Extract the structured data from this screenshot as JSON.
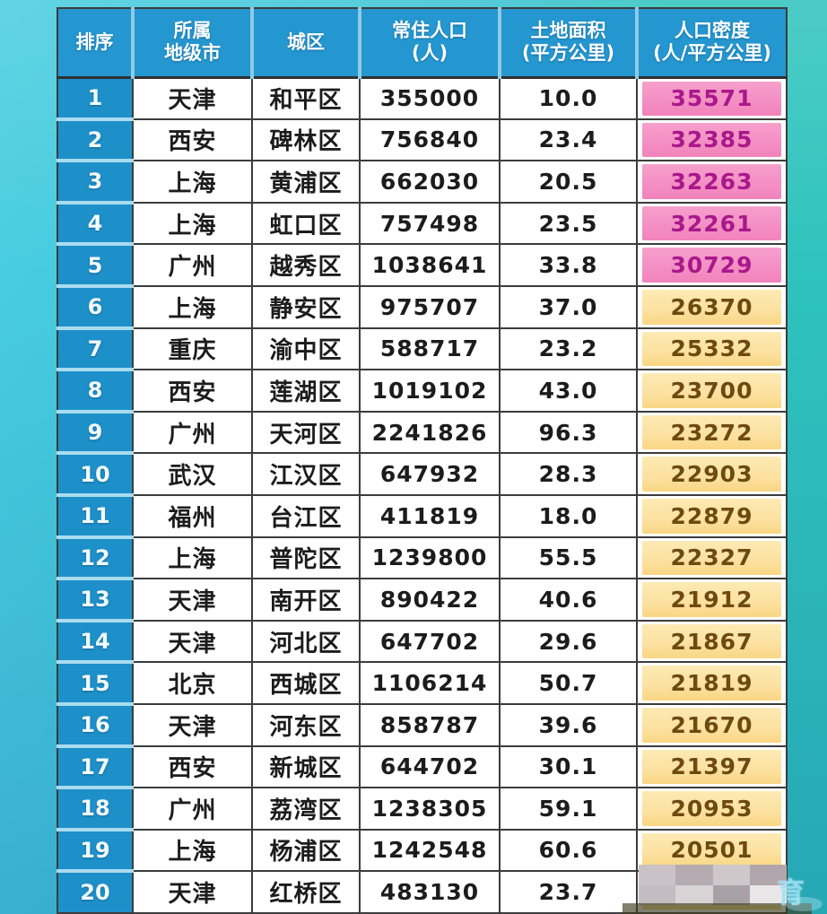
{
  "chart_data": {
    "type": "table",
    "title": "",
    "columns": [
      "排序",
      "所属\n地级市",
      "城区",
      "常住人口\n(人)",
      "土地面积\n(平方公里)",
      "人口密度\n(人/平方公里)"
    ],
    "rows": [
      {
        "rank": "1",
        "city": "天津",
        "district": "和平区",
        "population": "355000",
        "area": "10.0",
        "density": "35571",
        "highlight": "pink"
      },
      {
        "rank": "2",
        "city": "西安",
        "district": "碑林区",
        "population": "756840",
        "area": "23.4",
        "density": "32385",
        "highlight": "pink"
      },
      {
        "rank": "3",
        "city": "上海",
        "district": "黄浦区",
        "population": "662030",
        "area": "20.5",
        "density": "32263",
        "highlight": "pink"
      },
      {
        "rank": "4",
        "city": "上海",
        "district": "虹口区",
        "population": "757498",
        "area": "23.5",
        "density": "32261",
        "highlight": "pink"
      },
      {
        "rank": "5",
        "city": "广州",
        "district": "越秀区",
        "population": "1038641",
        "area": "33.8",
        "density": "30729",
        "highlight": "pink"
      },
      {
        "rank": "6",
        "city": "上海",
        "district": "静安区",
        "population": "975707",
        "area": "37.0",
        "density": "26370",
        "highlight": "yellow"
      },
      {
        "rank": "7",
        "city": "重庆",
        "district": "渝中区",
        "population": "588717",
        "area": "23.2",
        "density": "25332",
        "highlight": "yellow"
      },
      {
        "rank": "8",
        "city": "西安",
        "district": "莲湖区",
        "population": "1019102",
        "area": "43.0",
        "density": "23700",
        "highlight": "yellow"
      },
      {
        "rank": "9",
        "city": "广州",
        "district": "天河区",
        "population": "2241826",
        "area": "96.3",
        "density": "23272",
        "highlight": "yellow"
      },
      {
        "rank": "10",
        "city": "武汉",
        "district": "江汉区",
        "population": "647932",
        "area": "28.3",
        "density": "22903",
        "highlight": "yellow"
      },
      {
        "rank": "11",
        "city": "福州",
        "district": "台江区",
        "population": "411819",
        "area": "18.0",
        "density": "22879",
        "highlight": "yellow"
      },
      {
        "rank": "12",
        "city": "上海",
        "district": "普陀区",
        "population": "1239800",
        "area": "55.5",
        "density": "22327",
        "highlight": "yellow"
      },
      {
        "rank": "13",
        "city": "天津",
        "district": "南开区",
        "population": "890422",
        "area": "40.6",
        "density": "21912",
        "highlight": "yellow"
      },
      {
        "rank": "14",
        "city": "天津",
        "district": "河北区",
        "population": "647702",
        "area": "29.6",
        "density": "21867",
        "highlight": "yellow"
      },
      {
        "rank": "15",
        "city": "北京",
        "district": "西城区",
        "population": "1106214",
        "area": "50.7",
        "density": "21819",
        "highlight": "yellow"
      },
      {
        "rank": "16",
        "city": "天津",
        "district": "河东区",
        "population": "858787",
        "area": "39.6",
        "density": "21670",
        "highlight": "yellow"
      },
      {
        "rank": "17",
        "city": "西安",
        "district": "新城区",
        "population": "644702",
        "area": "30.1",
        "density": "21397",
        "highlight": "yellow"
      },
      {
        "rank": "18",
        "city": "广州",
        "district": "荔湾区",
        "population": "1238305",
        "area": "59.1",
        "density": "20953",
        "highlight": "yellow"
      },
      {
        "rank": "19",
        "city": "上海",
        "district": "杨浦区",
        "population": "1242548",
        "area": "60.6",
        "density": "20501",
        "highlight": "yellow"
      },
      {
        "rank": "20",
        "city": "天津",
        "district": "红桥区",
        "population": "483130",
        "area": "23.7",
        "density": "",
        "highlight": "yellow",
        "censored": true
      }
    ]
  },
  "colors": {
    "header_blue": "#2497d0",
    "rank_blue": "#1e90c9",
    "pink_bg": "#f48fc4",
    "pink_text": "#a9188b",
    "yellow_bg": "#fce1a0",
    "yellow_text": "#6e4a10",
    "bg_left": "#48cde0",
    "bg_right": "#2fc3bd"
  },
  "censor_mosaic": {
    "block_colors": [
      "#cac2c6",
      "#b5abb0",
      "#cfc8cb",
      "#b0a6ab",
      "#c3bcc0",
      "#d8d3d5",
      "#aaa1a6",
      "#e9e6e7"
    ]
  },
  "watermark": {
    "text": "育"
  }
}
